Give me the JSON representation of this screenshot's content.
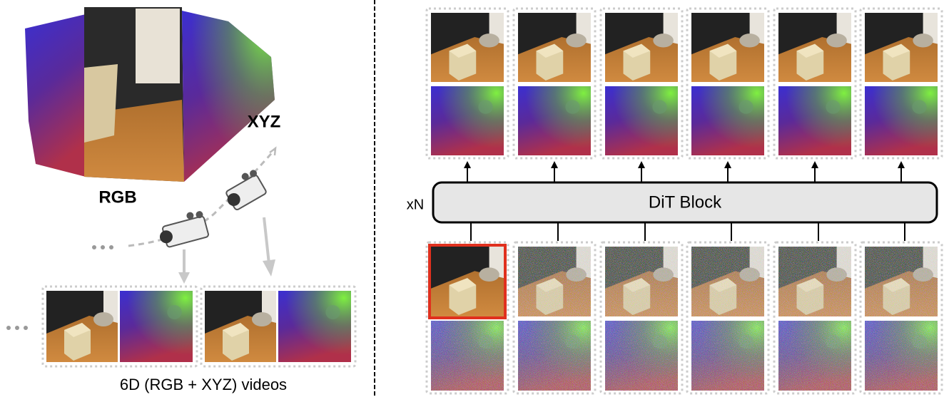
{
  "point_cloud": {
    "xyz_label": "XYZ",
    "rgb_label": "RGB"
  },
  "videos": {
    "caption": "6D (RGB + XYZ) videos"
  },
  "model": {
    "repeat_label": "xN",
    "block_label": "DiT Block"
  }
}
